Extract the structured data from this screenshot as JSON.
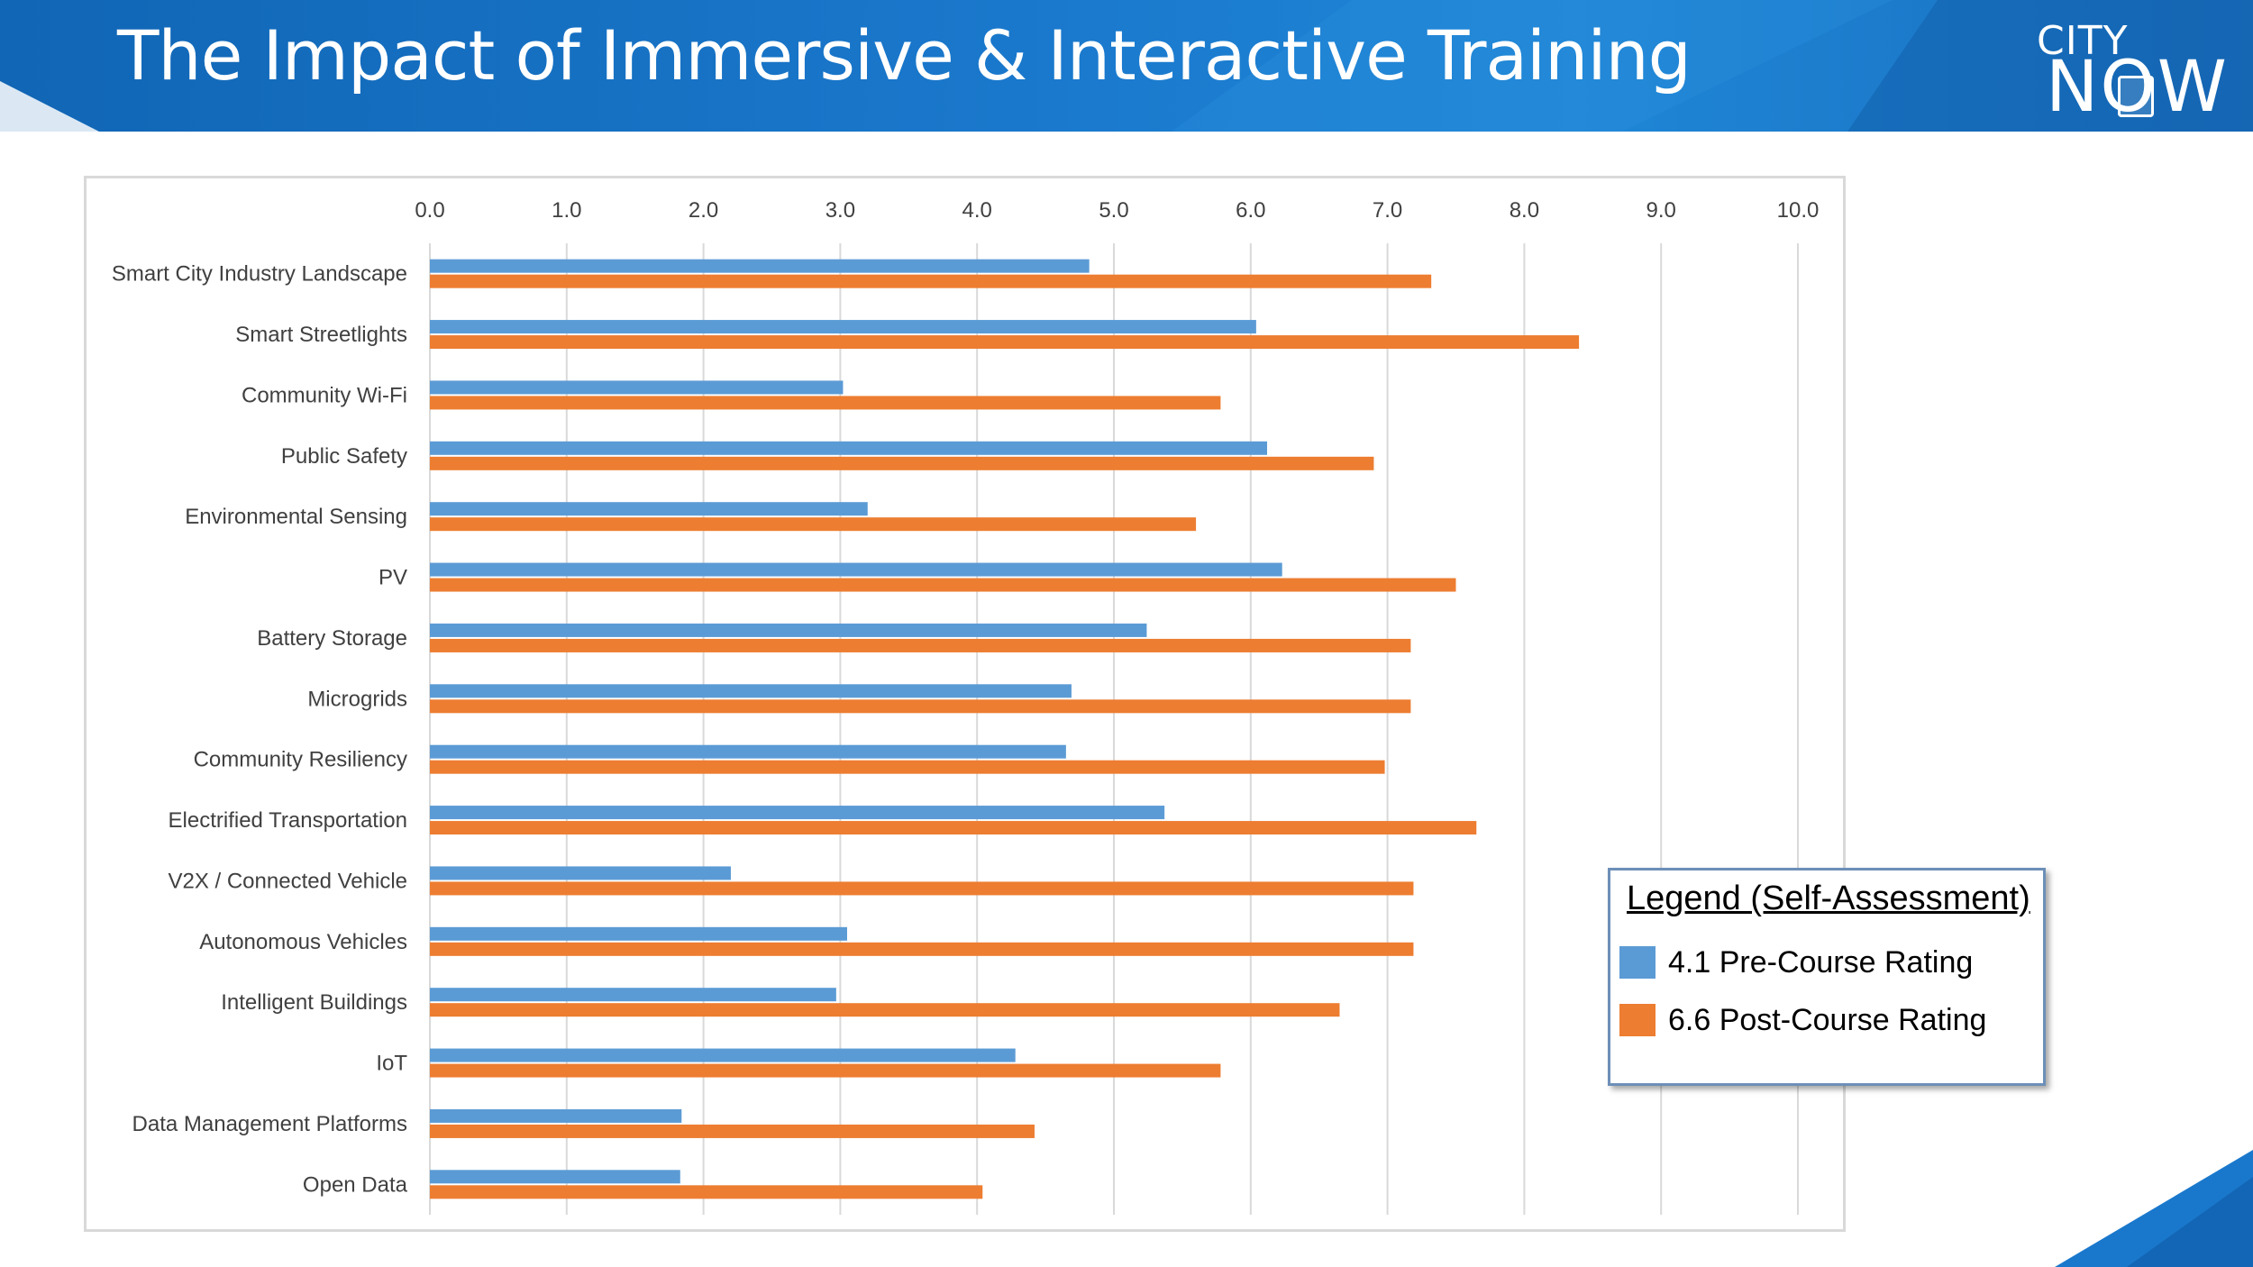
{
  "header": {
    "title": "The Impact of Immersive & Interactive Training",
    "logo_text_top": "CITY",
    "logo_text_bottom": "NOW"
  },
  "colors": {
    "banner": "#1a78cc",
    "pre": "#5b9bd5",
    "post": "#ed7d31",
    "grid": "#d9d9d9",
    "label": "#404040"
  },
  "legend": {
    "title": "Legend (Self-Assessment)",
    "items": [
      {
        "label": "4.1 Pre-Course Rating",
        "color": "#5b9bd5"
      },
      {
        "label": "6.6 Post-Course Rating",
        "color": "#ed7d31"
      }
    ]
  },
  "chart_data": {
    "type": "bar",
    "orientation": "horizontal",
    "title": "",
    "xlabel": "",
    "ylabel": "",
    "xlim": [
      0,
      10
    ],
    "x_ticks": [
      "0.0",
      "1.0",
      "2.0",
      "3.0",
      "4.0",
      "5.0",
      "6.0",
      "7.0",
      "8.0",
      "9.0",
      "10.0"
    ],
    "x_axis_position": "top",
    "grid": true,
    "legend_position": "right",
    "categories": [
      "Smart City Industry Landscape",
      "Smart Streetlights",
      "Community Wi-Fi",
      "Public Safety",
      "Environmental Sensing",
      "PV",
      "Battery Storage",
      "Microgrids",
      "Community Resiliency",
      "Electrified Transportation",
      "V2X / Connected Vehicle",
      "Autonomous Vehicles",
      "Intelligent Buildings",
      "IoT",
      "Data Management Platforms",
      "Open Data"
    ],
    "series": [
      {
        "name": "4.1 Pre-Course Rating",
        "color": "#5b9bd5",
        "values": [
          4.82,
          6.04,
          3.02,
          6.12,
          3.2,
          6.23,
          5.24,
          4.69,
          4.65,
          5.37,
          2.2,
          3.05,
          2.97,
          4.28,
          1.84,
          1.83
        ]
      },
      {
        "name": "6.6 Post-Course Rating",
        "color": "#ed7d31",
        "values": [
          7.32,
          8.4,
          5.78,
          6.9,
          5.6,
          7.5,
          7.17,
          7.17,
          6.98,
          7.65,
          7.19,
          7.19,
          6.65,
          5.78,
          4.42,
          4.04
        ]
      }
    ]
  }
}
